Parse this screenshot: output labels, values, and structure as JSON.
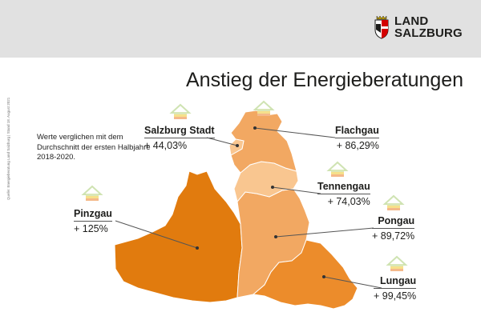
{
  "header": {
    "logo_line1": "LAND",
    "logo_line2": "SALZBURG",
    "crest_icon": "salzburg-crest-icon"
  },
  "title": "Anstieg der Energieberatungen",
  "note": "Werte verglichen mit dem Durchschnitt der ersten Halbjahre 2018-2020.",
  "side_credit": "Quelle: Energieberatung Land Salzburg | Stand 18. August 2021",
  "colors": {
    "header_bg": "#e1e1e1",
    "light": "#f9c690",
    "medium": "#f2a862",
    "strong": "#ec8c2b",
    "highest": "#e17b0e"
  },
  "regions": [
    {
      "id": "salzburg-stadt",
      "name": "Salzburg Stadt",
      "value": "+ 44,03%"
    },
    {
      "id": "flachgau",
      "name": "Flachgau",
      "value": "+ 86,29%"
    },
    {
      "id": "tennengau",
      "name": "Tennengau",
      "value": "+ 74,03%"
    },
    {
      "id": "pongau",
      "name": "Pongau",
      "value": "+ 89,72%"
    },
    {
      "id": "pinzgau",
      "name": "Pinzgau",
      "value": "+ 125%"
    },
    {
      "id": "lungau",
      "name": "Lungau",
      "value": "+ 99,45%"
    }
  ]
}
